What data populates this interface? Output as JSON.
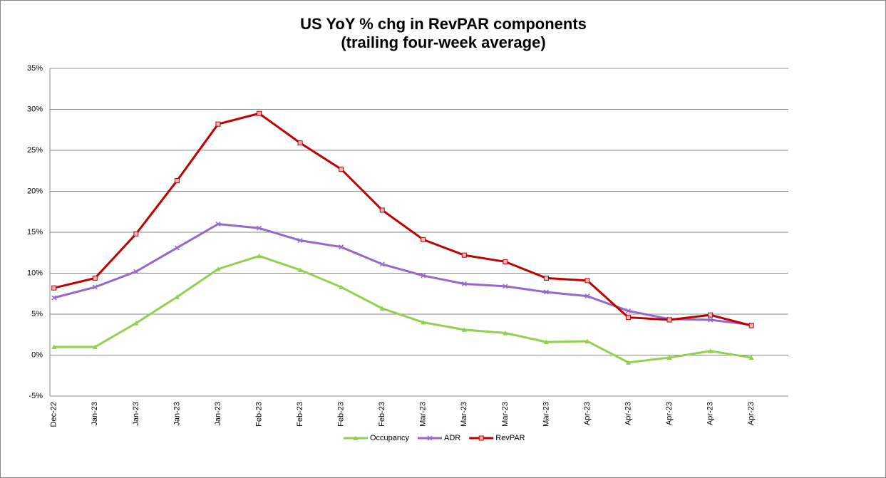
{
  "chart_data": {
    "type": "line",
    "title": "US YoY % chg in RevPAR components",
    "subtitle": "(trailing four-week average)",
    "categories": [
      "Dec-22",
      "Jan-23",
      "Jan-23",
      "Jan-23",
      "Jan-23",
      "Feb-23",
      "Feb-23",
      "Feb-23",
      "Feb-23",
      "Mar-23",
      "Mar-23",
      "Mar-23",
      "Mar-23",
      "Apr-23",
      "Apr-23",
      "Apr-23",
      "Apr-23",
      "Apr-23"
    ],
    "series": [
      {
        "name": "Occupancy",
        "color": "#92d050",
        "marker": "triangle",
        "values": [
          1.0,
          1.0,
          3.9,
          7.1,
          10.5,
          12.1,
          10.4,
          8.3,
          5.7,
          4.0,
          3.1,
          2.7,
          1.6,
          1.7,
          -0.9,
          -0.3,
          0.5,
          -0.3
        ]
      },
      {
        "name": "ADR",
        "color": "#9966cc",
        "marker": "x",
        "values": [
          7.0,
          8.3,
          10.2,
          13.1,
          16.0,
          15.5,
          14.0,
          13.2,
          11.1,
          9.7,
          8.7,
          8.4,
          7.7,
          7.2,
          5.4,
          4.4,
          4.3,
          3.7
        ]
      },
      {
        "name": "RevPAR",
        "color": "#c00000",
        "marker": "square",
        "values": [
          8.2,
          9.4,
          14.8,
          21.3,
          28.2,
          29.5,
          25.9,
          22.7,
          17.7,
          14.1,
          12.2,
          11.4,
          9.4,
          9.1,
          4.6,
          4.3,
          4.9,
          3.6
        ]
      }
    ],
    "ylim": [
      -5,
      35
    ],
    "yticks": [
      {
        "value": -5,
        "label": "-5%"
      },
      {
        "value": 0,
        "label": "0%"
      },
      {
        "value": 5,
        "label": "5%"
      },
      {
        "value": 10,
        "label": "10%"
      },
      {
        "value": 15,
        "label": "15%"
      },
      {
        "value": 20,
        "label": "20%"
      },
      {
        "value": 25,
        "label": "25%"
      },
      {
        "value": 30,
        "label": "30%"
      },
      {
        "value": 35,
        "label": "35%"
      }
    ],
    "grid": true,
    "legend": "bottom"
  }
}
